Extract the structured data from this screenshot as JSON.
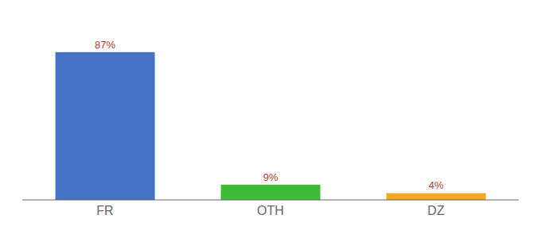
{
  "chart_data": {
    "type": "bar",
    "categories": [
      "FR",
      "OTH",
      "DZ"
    ],
    "values": [
      87,
      9,
      4
    ],
    "value_labels": [
      "87%",
      "9%",
      "4%"
    ],
    "colors": [
      "#4472c4",
      "#3dbb35",
      "#f5a623"
    ],
    "ylim": [
      0,
      100
    ],
    "data_labels": true,
    "tick_labels": "x",
    "grid": false
  }
}
